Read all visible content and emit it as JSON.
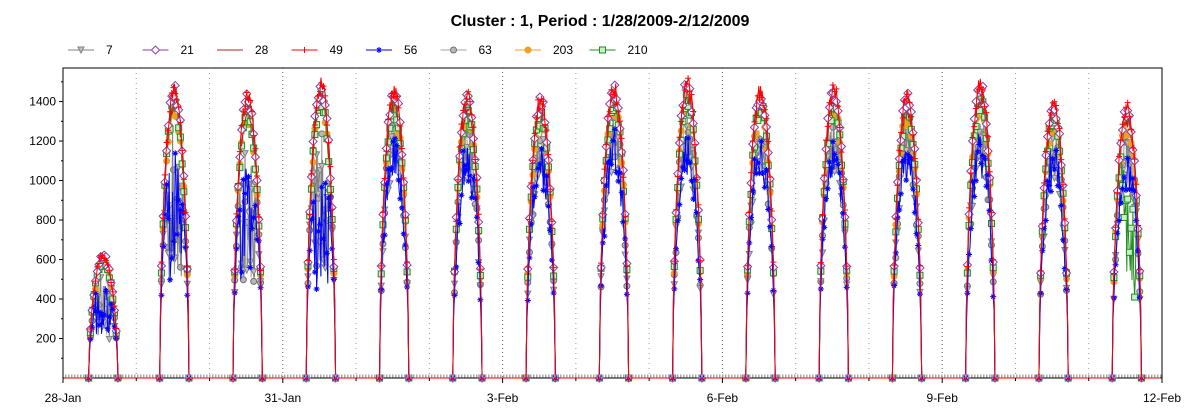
{
  "chart_data": {
    "type": "line",
    "title": "Cluster : 1, Period : 1/28/2009-2/12/2009",
    "xlabel": "",
    "ylabel": "",
    "x_start_label": "28-Jan",
    "x_end_label": "12-Feb",
    "xlim_days": [
      0,
      15
    ],
    "ylim": [
      0,
      1570
    ],
    "y_ticks": [
      200,
      400,
      600,
      800,
      1000,
      1200,
      1400
    ],
    "x_ticks": [
      {
        "day": 0,
        "label": "28-Jan"
      },
      {
        "day": 3,
        "label": "31-Jan"
      },
      {
        "day": 6,
        "label": "3-Feb"
      },
      {
        "day": 9,
        "label": "6-Feb"
      },
      {
        "day": 12,
        "label": "9-Feb"
      },
      {
        "day": 15,
        "label": "12-Feb"
      }
    ],
    "minor_day_gridlines": true,
    "legend_position": "top",
    "series": [
      {
        "name": "7",
        "color": "#808080",
        "marker": "triangle-down",
        "peak_scale": 0.92
      },
      {
        "name": "21",
        "color": "#8b3fa8",
        "marker": "diamond",
        "peak_scale": 1.02
      },
      {
        "name": "28",
        "color": "#b22222",
        "marker": "none",
        "peak_scale": 0.99
      },
      {
        "name": "49",
        "color": "#ff0000",
        "marker": "plus",
        "peak_scale": 1.03
      },
      {
        "name": "56",
        "color": "#0000ff",
        "marker": "star",
        "peak_scale": 0.88
      },
      {
        "name": "63",
        "color": "#a0a0a0",
        "marker": "circle",
        "peak_scale": 0.95
      },
      {
        "name": "203",
        "color": "#f0a020",
        "marker": "circle",
        "peak_scale": 0.96
      },
      {
        "name": "210",
        "color": "#1e8f1e",
        "marker": "square",
        "peak_scale": 0.97
      }
    ],
    "daily_peaks": [
      {
        "day_index": 0,
        "peak": 620,
        "start": 0.35,
        "end": 0.75
      },
      {
        "day_index": 1,
        "peak": 1460,
        "start": 0.32,
        "end": 0.72
      },
      {
        "day_index": 2,
        "peak": 1420,
        "start": 0.32,
        "end": 0.72
      },
      {
        "day_index": 3,
        "peak": 1490,
        "start": 0.32,
        "end": 0.72
      },
      {
        "day_index": 4,
        "peak": 1450,
        "start": 0.32,
        "end": 0.72
      },
      {
        "day_index": 5,
        "peak": 1420,
        "start": 0.32,
        "end": 0.72
      },
      {
        "day_index": 6,
        "peak": 1400,
        "start": 0.32,
        "end": 0.72
      },
      {
        "day_index": 7,
        "peak": 1470,
        "start": 0.32,
        "end": 0.72
      },
      {
        "day_index": 8,
        "peak": 1490,
        "start": 0.32,
        "end": 0.72
      },
      {
        "day_index": 9,
        "peak": 1450,
        "start": 0.32,
        "end": 0.72
      },
      {
        "day_index": 10,
        "peak": 1460,
        "start": 0.32,
        "end": 0.72
      },
      {
        "day_index": 11,
        "peak": 1420,
        "start": 0.32,
        "end": 0.72
      },
      {
        "day_index": 12,
        "peak": 1480,
        "start": 0.32,
        "end": 0.72
      },
      {
        "day_index": 13,
        "peak": 1390,
        "start": 0.32,
        "end": 0.72
      },
      {
        "day_index": 14,
        "peak": 1360,
        "start": 0.32,
        "end": 0.72
      }
    ]
  }
}
